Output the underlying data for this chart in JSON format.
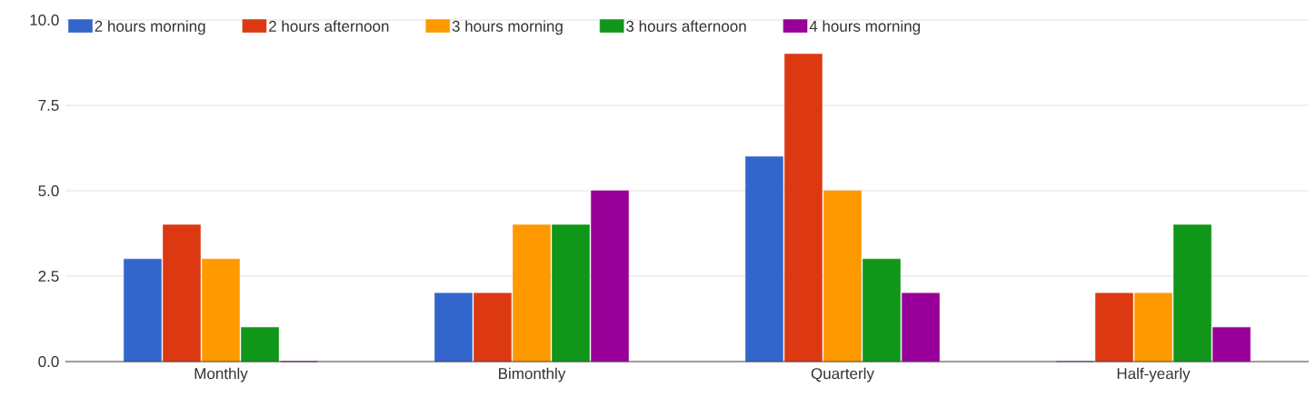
{
  "chart_data": {
    "type": "bar",
    "categories": [
      "Monthly",
      "Bimonthly",
      "Quarterly",
      "Half-yearly"
    ],
    "series": [
      {
        "name": "2 hours morning",
        "color": "#3366cc",
        "values": [
          3,
          2,
          6,
          0
        ]
      },
      {
        "name": "2 hours afternoon",
        "color": "#dc3912",
        "values": [
          4,
          2,
          9,
          2
        ]
      },
      {
        "name": "3 hours morning",
        "color": "#ff9900",
        "values": [
          3,
          4,
          5,
          2
        ]
      },
      {
        "name": "3 hours afternoon",
        "color": "#109618",
        "values": [
          1,
          4,
          3,
          4
        ]
      },
      {
        "name": "4 hours morning",
        "color": "#990099",
        "values": [
          0,
          5,
          2,
          1
        ]
      }
    ],
    "ylim": [
      0,
      10
    ],
    "yticks": [
      {
        "value": 0,
        "label": "0.0"
      },
      {
        "value": 2.5,
        "label": "2.5"
      },
      {
        "value": 5,
        "label": "5.0"
      },
      {
        "value": 7.5,
        "label": "7.5"
      },
      {
        "value": 10,
        "label": "10.0"
      }
    ],
    "grid": "y",
    "legend": "top"
  }
}
